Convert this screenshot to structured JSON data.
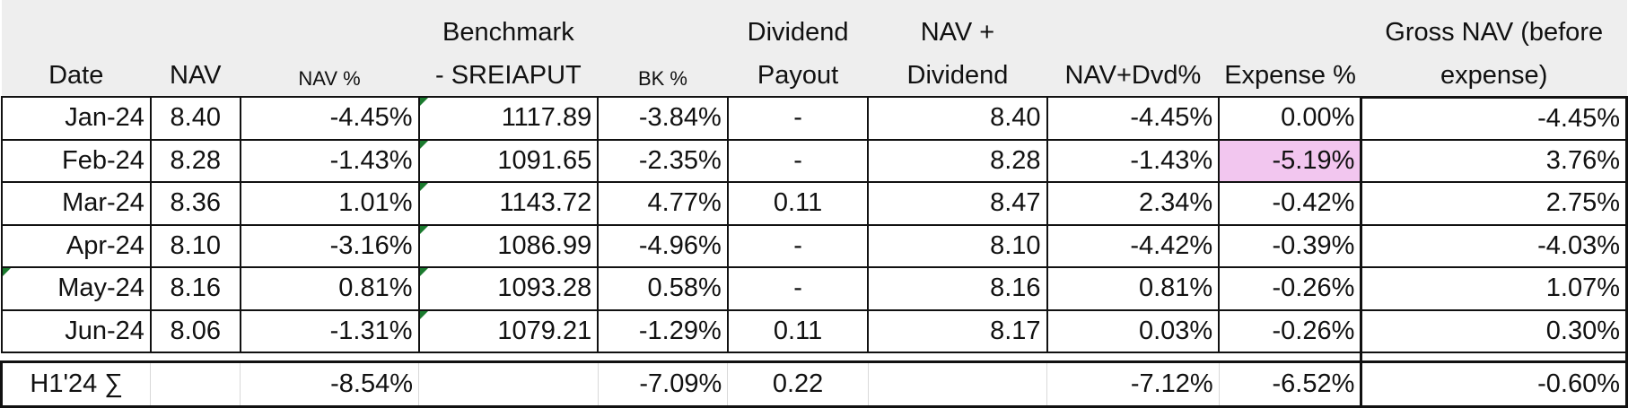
{
  "header": {
    "date": "Date",
    "nav": "NAV",
    "nav_pct": "NAV %",
    "benchmark_line1": "Benchmark",
    "benchmark_line2": "- SREIAPUT",
    "bk_pct": "BK %",
    "dividend_line1": "Dividend",
    "dividend_line2": "Payout",
    "navdiv_line1": "NAV +",
    "navdiv_line2": "Dividend",
    "nav_dvd_pct": "NAV+Dvd%",
    "expense_pct": "Expense %",
    "gross_line1": "Gross NAV (before",
    "gross_line2": "expense)"
  },
  "rows": [
    {
      "date": "Jan-24",
      "nav": "8.40",
      "nav_pct": "-4.45%",
      "benchmark": "1117.89",
      "bk_pct": "-3.84%",
      "dividend": "-",
      "nav_dividend": "8.40",
      "nav_dvd_pct": "-4.45%",
      "expense_pct": "0.00%",
      "gross": "-4.45%"
    },
    {
      "date": "Feb-24",
      "nav": "8.28",
      "nav_pct": "-1.43%",
      "benchmark": "1091.65",
      "bk_pct": "-2.35%",
      "dividend": "-",
      "nav_dividend": "8.28",
      "nav_dvd_pct": "-1.43%",
      "expense_pct": "-5.19%",
      "gross": "3.76%"
    },
    {
      "date": "Mar-24",
      "nav": "8.36",
      "nav_pct": "1.01%",
      "benchmark": "1143.72",
      "bk_pct": "4.77%",
      "dividend": "0.11",
      "nav_dividend": "8.47",
      "nav_dvd_pct": "2.34%",
      "expense_pct": "-0.42%",
      "gross": "2.75%"
    },
    {
      "date": "Apr-24",
      "nav": "8.10",
      "nav_pct": "-3.16%",
      "benchmark": "1086.99",
      "bk_pct": "-4.96%",
      "dividend": "-",
      "nav_dividend": "8.10",
      "nav_dvd_pct": "-4.42%",
      "expense_pct": "-0.39%",
      "gross": "-4.03%"
    },
    {
      "date": "May-24",
      "nav": "8.16",
      "nav_pct": "0.81%",
      "benchmark": "1093.28",
      "bk_pct": "0.58%",
      "dividend": "-",
      "nav_dividend": "8.16",
      "nav_dvd_pct": "0.81%",
      "expense_pct": "-0.26%",
      "gross": "1.07%"
    },
    {
      "date": "Jun-24",
      "nav": "8.06",
      "nav_pct": "-1.31%",
      "benchmark": "1079.21",
      "bk_pct": "-1.29%",
      "dividend": "0.11",
      "nav_dividend": "8.17",
      "nav_dvd_pct": "0.03%",
      "expense_pct": "-0.26%",
      "gross": "0.30%"
    }
  ],
  "total": {
    "label": "H1'24 ∑",
    "nav_pct": "-8.54%",
    "bk_pct": "-7.09%",
    "dividend": "0.22",
    "nav_dvd_pct": "-7.12%",
    "expense_pct": "-6.52%",
    "gross": "-0.60%"
  },
  "colors": {
    "header_bg": "#eeeeee",
    "highlight_cell": "#f2c6ef",
    "comment_marker": "#1a7a2e"
  }
}
